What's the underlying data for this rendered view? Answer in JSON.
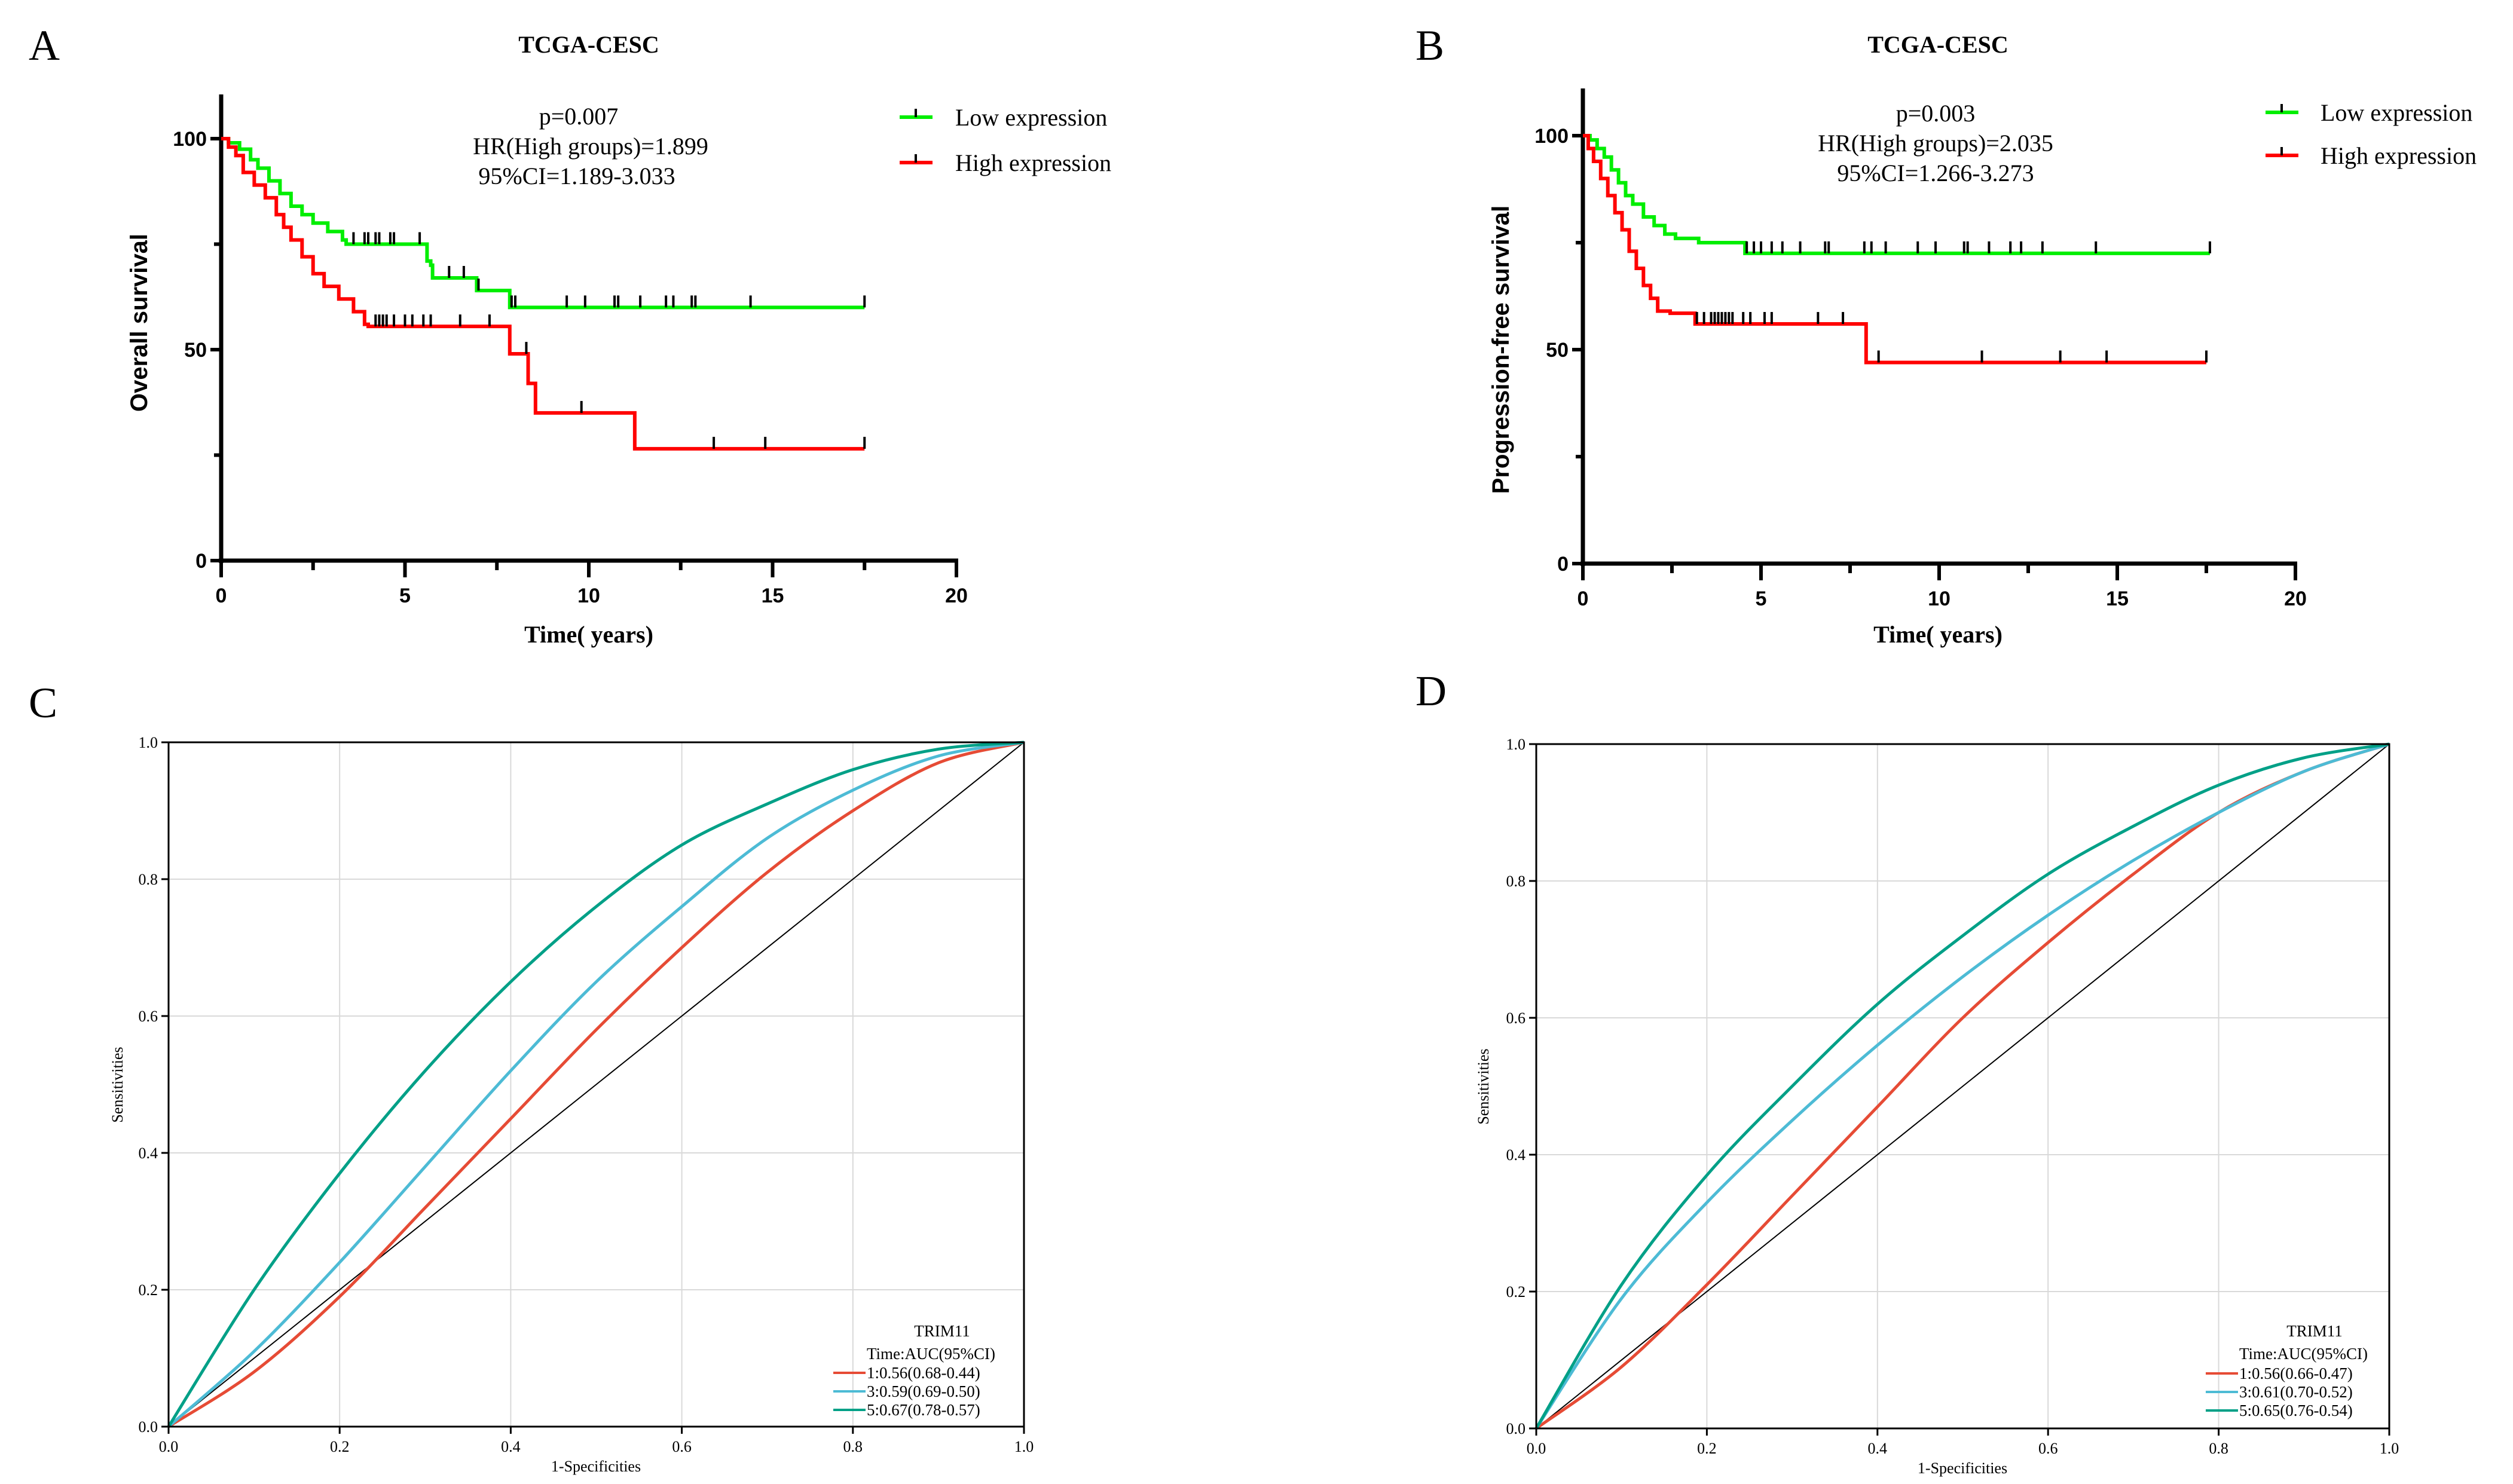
{
  "figure": {
    "panels": [
      "A",
      "B",
      "C",
      "D"
    ]
  },
  "colors": {
    "low_expression": "#00ee00",
    "high_expression": "#ff0000",
    "censor_mark": "#000000",
    "roc_1yr": "#e64b35",
    "roc_3yr": "#4dbbd5",
    "roc_5yr": "#00a087",
    "diagonal": "#000000",
    "grid": "#d9d9d9"
  },
  "chart_data": [
    {
      "panel": "A",
      "type": "line",
      "subtype": "kaplan-meier",
      "title": "TCGA-CESC",
      "xlabel": "Time( years)",
      "ylabel": "Overall survival",
      "xlim": [
        0,
        20
      ],
      "ylim": [
        0,
        100
      ],
      "xticks": [
        "0",
        "5",
        "10",
        "15",
        "20"
      ],
      "yticks": [
        "0",
        "50",
        "100"
      ],
      "y_minor_ticks": [
        25,
        75
      ],
      "annotations": [
        "p=0.007",
        "HR(High groups)=1.899",
        "95%CI=1.189-3.033"
      ],
      "legend": {
        "position": "top-right",
        "entries": [
          "Low expression",
          "High expression"
        ]
      },
      "series": [
        {
          "name": "Low expression",
          "steps": [
            [
              0,
              100
            ],
            [
              0.2,
              99
            ],
            [
              0.5,
              97.5
            ],
            [
              0.8,
              95
            ],
            [
              1.0,
              93
            ],
            [
              1.3,
              90
            ],
            [
              1.6,
              87
            ],
            [
              1.9,
              84
            ],
            [
              2.2,
              82
            ],
            [
              2.5,
              80
            ],
            [
              2.9,
              78
            ],
            [
              3.3,
              76
            ],
            [
              3.4,
              75
            ],
            [
              5.5,
              75
            ],
            [
              5.6,
              71
            ],
            [
              5.7,
              70
            ],
            [
              5.75,
              67
            ],
            [
              6.9,
              67
            ],
            [
              6.95,
              64
            ],
            [
              7.8,
              64
            ],
            [
              7.85,
              60
            ],
            [
              17.5,
              60
            ]
          ],
          "censor_times": [
            3.6,
            3.9,
            4.0,
            4.2,
            4.3,
            4.6,
            4.7,
            5.4,
            6.2,
            6.6,
            7.0,
            7.9,
            8.0,
            9.4,
            9.9,
            10.7,
            10.8,
            11.4,
            12.1,
            12.3,
            12.8,
            12.9,
            14.4,
            17.5
          ]
        },
        {
          "name": "High expression",
          "steps": [
            [
              0,
              100
            ],
            [
              0.2,
              98
            ],
            [
              0.4,
              96
            ],
            [
              0.6,
              92
            ],
            [
              0.9,
              89
            ],
            [
              1.2,
              86
            ],
            [
              1.5,
              82
            ],
            [
              1.7,
              79
            ],
            [
              1.9,
              76
            ],
            [
              2.2,
              72
            ],
            [
              2.5,
              68
            ],
            [
              2.8,
              65
            ],
            [
              3.2,
              62
            ],
            [
              3.6,
              59
            ],
            [
              3.9,
              56
            ],
            [
              4.0,
              55.5
            ],
            [
              7.8,
              55.5
            ],
            [
              7.85,
              49
            ],
            [
              8.3,
              49
            ],
            [
              8.35,
              42
            ],
            [
              8.5,
              42
            ],
            [
              8.55,
              35
            ],
            [
              11.2,
              35
            ],
            [
              11.25,
              26.5
            ],
            [
              17.5,
              26.5
            ]
          ],
          "censor_times": [
            4.2,
            4.3,
            4.4,
            4.5,
            4.7,
            5.0,
            5.2,
            5.5,
            5.7,
            6.5,
            7.3,
            8.3,
            9.8,
            13.4,
            14.8,
            17.5
          ]
        }
      ]
    },
    {
      "panel": "B",
      "type": "line",
      "subtype": "kaplan-meier",
      "title": "TCGA-CESC",
      "xlabel": "Time( years)",
      "ylabel": "Progression-free survival",
      "xlim": [
        0,
        20
      ],
      "ylim": [
        0,
        100
      ],
      "xticks": [
        "0",
        "5",
        "10",
        "15",
        "20"
      ],
      "yticks": [
        "0",
        "50",
        "100"
      ],
      "y_minor_ticks": [
        25,
        75
      ],
      "annotations": [
        "p=0.003",
        "HR(High groups)=2.035",
        "95%CI=1.266-3.273"
      ],
      "legend": {
        "position": "top-right",
        "entries": [
          "Low expression",
          "High expression"
        ]
      },
      "series": [
        {
          "name": "Low expression",
          "steps": [
            [
              0,
              100
            ],
            [
              0.2,
              99
            ],
            [
              0.4,
              97
            ],
            [
              0.6,
              95
            ],
            [
              0.8,
              92
            ],
            [
              1.0,
              89
            ],
            [
              1.2,
              86
            ],
            [
              1.4,
              84
            ],
            [
              1.7,
              81
            ],
            [
              2.0,
              79
            ],
            [
              2.3,
              77
            ],
            [
              2.6,
              76
            ],
            [
              3.2,
              76
            ],
            [
              3.25,
              75
            ],
            [
              4.5,
              75
            ],
            [
              4.55,
              72.5
            ],
            [
              17.6,
              72.5
            ]
          ],
          "censor_times": [
            4.6,
            4.8,
            5.0,
            5.3,
            5.6,
            6.1,
            6.8,
            6.9,
            7.9,
            8.1,
            8.5,
            9.4,
            9.9,
            10.7,
            10.8,
            11.4,
            12.0,
            12.3,
            12.9,
            14.4,
            17.6
          ]
        },
        {
          "name": "High expression",
          "steps": [
            [
              0,
              100
            ],
            [
              0.15,
              97
            ],
            [
              0.3,
              94
            ],
            [
              0.5,
              90
            ],
            [
              0.7,
              86
            ],
            [
              0.9,
              82
            ],
            [
              1.1,
              78
            ],
            [
              1.3,
              73
            ],
            [
              1.5,
              69
            ],
            [
              1.7,
              65
            ],
            [
              1.9,
              62
            ],
            [
              2.1,
              59
            ],
            [
              2.4,
              59
            ],
            [
              2.45,
              58.5
            ],
            [
              3.1,
              58.5
            ],
            [
              3.15,
              56
            ],
            [
              7.9,
              56
            ],
            [
              7.95,
              47
            ],
            [
              17.5,
              47
            ]
          ],
          "censor_times": [
            3.2,
            3.4,
            3.6,
            3.7,
            3.8,
            3.9,
            4.0,
            4.1,
            4.2,
            4.5,
            4.7,
            5.1,
            5.3,
            6.6,
            7.3,
            8.3,
            11.2,
            13.4,
            14.7,
            17.5
          ]
        }
      ]
    },
    {
      "panel": "C",
      "type": "line",
      "subtype": "roc",
      "xlabel": "1-Specificities",
      "ylabel": "Sensitivities",
      "xlim": [
        0,
        1
      ],
      "ylim": [
        0,
        1
      ],
      "xticks": [
        "0.0",
        "0.2",
        "0.4",
        "0.6",
        "0.8",
        "1.0"
      ],
      "yticks": [
        "0.0",
        "0.2",
        "0.4",
        "0.6",
        "0.8",
        "1.0"
      ],
      "grid": true,
      "legend": {
        "position": "bottom-right",
        "title": "TRIM11",
        "subtitle": "Time:AUC(95%CI)",
        "entries": [
          "1:0.56(0.68-0.44)",
          "3:0.59(0.69-0.50)",
          "5:0.67(0.78-0.57)"
        ]
      },
      "series": [
        {
          "name": "1:0.56(0.68-0.44)",
          "time": 1,
          "auc": 0.56,
          "ci": [
            0.68,
            0.44
          ],
          "x": [
            0,
            0.1,
            0.2,
            0.3,
            0.4,
            0.5,
            0.6,
            0.7,
            0.8,
            0.9,
            1.0
          ],
          "y": [
            0,
            0.08,
            0.19,
            0.32,
            0.45,
            0.58,
            0.7,
            0.81,
            0.9,
            0.97,
            1.0
          ]
        },
        {
          "name": "3:0.59(0.69-0.50)",
          "time": 3,
          "auc": 0.59,
          "ci": [
            0.69,
            0.5
          ],
          "x": [
            0,
            0.1,
            0.2,
            0.3,
            0.4,
            0.5,
            0.6,
            0.7,
            0.8,
            0.9,
            1.0
          ],
          "y": [
            0,
            0.11,
            0.24,
            0.38,
            0.52,
            0.65,
            0.76,
            0.86,
            0.93,
            0.98,
            1.0
          ]
        },
        {
          "name": "5:0.67(0.78-0.57)",
          "time": 5,
          "auc": 0.67,
          "ci": [
            0.78,
            0.57
          ],
          "x": [
            0,
            0.1,
            0.2,
            0.3,
            0.4,
            0.5,
            0.6,
            0.7,
            0.8,
            0.9,
            1.0
          ],
          "y": [
            0,
            0.2,
            0.37,
            0.52,
            0.65,
            0.76,
            0.85,
            0.91,
            0.96,
            0.99,
            1.0
          ]
        }
      ]
    },
    {
      "panel": "D",
      "type": "line",
      "subtype": "roc",
      "xlabel": "1-Specificities",
      "ylabel": "Sensitivities",
      "xlim": [
        0,
        1
      ],
      "ylim": [
        0,
        1
      ],
      "xticks": [
        "0.0",
        "0.2",
        "0.4",
        "0.6",
        "0.8",
        "1.0"
      ],
      "yticks": [
        "0.0",
        "0.2",
        "0.4",
        "0.6",
        "0.8",
        "1.0"
      ],
      "grid": true,
      "legend": {
        "position": "bottom-right",
        "title": "TRIM11",
        "subtitle": "Time:AUC(95%CI)",
        "entries": [
          "1:0.56(0.66-0.47)",
          "3:0.61(0.70-0.52)",
          "5:0.65(0.76-0.54)"
        ]
      },
      "series": [
        {
          "name": "1:0.56(0.66-0.47)",
          "time": 1,
          "auc": 0.56,
          "ci": [
            0.66,
            0.47
          ],
          "x": [
            0,
            0.1,
            0.2,
            0.3,
            0.4,
            0.5,
            0.6,
            0.7,
            0.8,
            0.9,
            1.0
          ],
          "y": [
            0,
            0.09,
            0.21,
            0.34,
            0.47,
            0.6,
            0.71,
            0.81,
            0.9,
            0.96,
            1.0
          ]
        },
        {
          "name": "3:0.61(0.70-0.52)",
          "time": 3,
          "auc": 0.61,
          "ci": [
            0.7,
            0.52
          ],
          "x": [
            0,
            0.1,
            0.2,
            0.3,
            0.4,
            0.5,
            0.6,
            0.7,
            0.8,
            0.9,
            1.0
          ],
          "y": [
            0,
            0.19,
            0.33,
            0.45,
            0.56,
            0.66,
            0.75,
            0.83,
            0.9,
            0.96,
            1.0
          ]
        },
        {
          "name": "5:0.65(0.76-0.54)",
          "time": 5,
          "auc": 0.65,
          "ci": [
            0.76,
            0.54
          ],
          "x": [
            0,
            0.1,
            0.2,
            0.3,
            0.4,
            0.5,
            0.6,
            0.7,
            0.8,
            0.9,
            1.0
          ],
          "y": [
            0,
            0.21,
            0.37,
            0.5,
            0.62,
            0.72,
            0.81,
            0.88,
            0.94,
            0.98,
            1.0
          ]
        }
      ]
    }
  ]
}
